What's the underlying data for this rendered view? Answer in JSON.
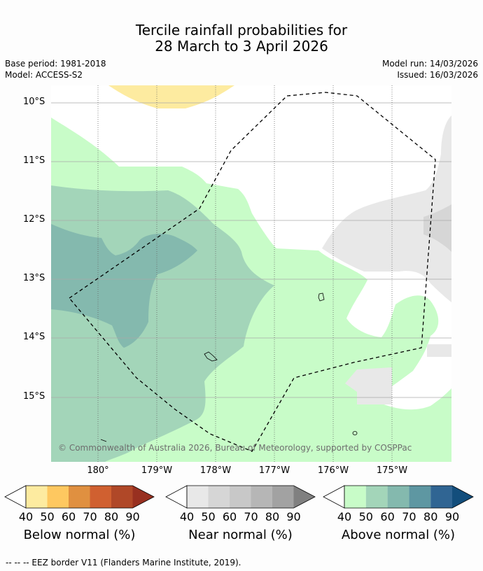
{
  "title": {
    "line1": "Tercile rainfall probabilities for",
    "line2": "28 March to 3 April 2026"
  },
  "meta": {
    "base_period": "Base period: 1981-2018",
    "model": "Model: ACCESS-S2",
    "model_run": "Model run: 14/03/2026",
    "issued": "Issued: 16/03/2026"
  },
  "map": {
    "lat_labels": [
      "10°S",
      "11°S",
      "12°S",
      "13°S",
      "14°S",
      "15°S"
    ],
    "lon_labels": [
      "180°",
      "179°W",
      "178°W",
      "177°W",
      "176°W",
      "175°W"
    ],
    "copyright": "© Commonwealth of Australia 2026, Bureau of Meteorology, supported by COSPPac"
  },
  "colors": {
    "below": [
      "#fdeba0",
      "#fec860",
      "#e09040",
      "#d06030",
      "#b04828",
      "#983020"
    ],
    "near": [
      "#e8e8e8",
      "#d6d6d6",
      "#c8c8c8",
      "#b6b6b6",
      "#a2a2a2",
      "#808080"
    ],
    "above": [
      "#c8fcc8",
      "#a3d5b9",
      "#84b9ae",
      "#5e97a2",
      "#306593",
      "#134e7c"
    ],
    "lower_arrow": "#ffffff"
  },
  "colorbars": {
    "ticks": [
      "40",
      "50",
      "60",
      "70",
      "80",
      "90"
    ],
    "below_label": "Below normal (%)",
    "near_label": "Near normal (%)",
    "above_label": "Above normal (%)"
  },
  "footer": "--  --  -- EEZ border V11 (Flanders Marine Institute, 2019)."
}
